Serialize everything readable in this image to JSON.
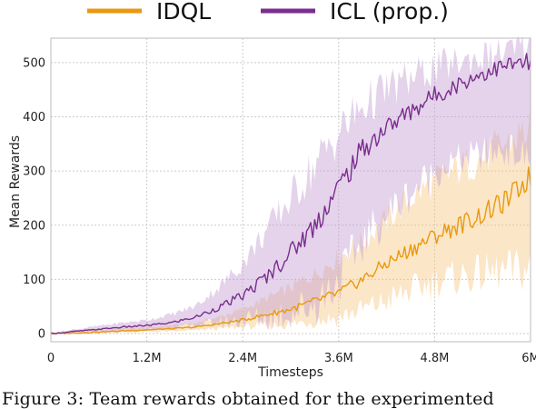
{
  "chart_data": {
    "type": "line",
    "xlabel": "Timesteps",
    "ylabel": "Mean Rewards",
    "xlim": [
      0,
      6000000
    ],
    "ylim": [
      -15,
      545
    ],
    "x_ticks": [
      {
        "value": 0,
        "label": "0"
      },
      {
        "value": 1200000,
        "label": "1.2M"
      },
      {
        "value": 2400000,
        "label": "2.4M"
      },
      {
        "value": 3600000,
        "label": "3.6M"
      },
      {
        "value": 4800000,
        "label": "4.8M"
      },
      {
        "value": 6000000,
        "label": "6M"
      }
    ],
    "y_ticks": [
      {
        "value": 0,
        "label": "0"
      },
      {
        "value": 100,
        "label": "100"
      },
      {
        "value": 200,
        "label": "200"
      },
      {
        "value": 300,
        "label": "300"
      },
      {
        "value": 400,
        "label": "400"
      },
      {
        "value": 500,
        "label": "500"
      }
    ],
    "grid": true,
    "legend_position": "top",
    "x": [
      0,
      300000,
      600000,
      900000,
      1200000,
      1500000,
      1800000,
      2100000,
      2400000,
      2700000,
      3000000,
      3300000,
      3600000,
      3900000,
      4200000,
      4500000,
      4800000,
      5100000,
      5400000,
      5700000,
      6000000
    ],
    "series": [
      {
        "name": "IDQL",
        "color": "#e8990f",
        "band_color": "#f6c883",
        "mean": [
          0,
          1,
          3,
          5,
          7,
          9,
          12,
          18,
          25,
          35,
          45,
          60,
          75,
          100,
          130,
          155,
          180,
          200,
          220,
          245,
          290
        ],
        "lower": [
          0,
          0,
          1,
          2,
          3,
          4,
          6,
          9,
          12,
          15,
          18,
          24,
          30,
          45,
          60,
          80,
          95,
          105,
          110,
          115,
          120
        ],
        "upper": [
          0,
          3,
          6,
          9,
          11,
          15,
          20,
          30,
          45,
          65,
          85,
          110,
          140,
          170,
          210,
          250,
          280,
          305,
          325,
          350,
          380
        ]
      },
      {
        "name": "ICL (prop.)",
        "color": "#7b2d8e",
        "band_color": "#c49ed3",
        "mean": [
          0,
          4,
          8,
          12,
          15,
          20,
          30,
          48,
          70,
          105,
          150,
          200,
          270,
          340,
          380,
          410,
          440,
          460,
          480,
          495,
          500
        ],
        "lower": [
          0,
          1,
          3,
          5,
          7,
          10,
          15,
          20,
          25,
          30,
          40,
          55,
          100,
          170,
          220,
          260,
          300,
          320,
          330,
          340,
          320
        ],
        "upper": [
          0,
          8,
          14,
          20,
          25,
          35,
          50,
          85,
          130,
          190,
          250,
          310,
          370,
          420,
          450,
          470,
          490,
          500,
          510,
          520,
          525
        ]
      }
    ]
  },
  "caption": "Figure 3:  Team rewards obtained for the experimented"
}
